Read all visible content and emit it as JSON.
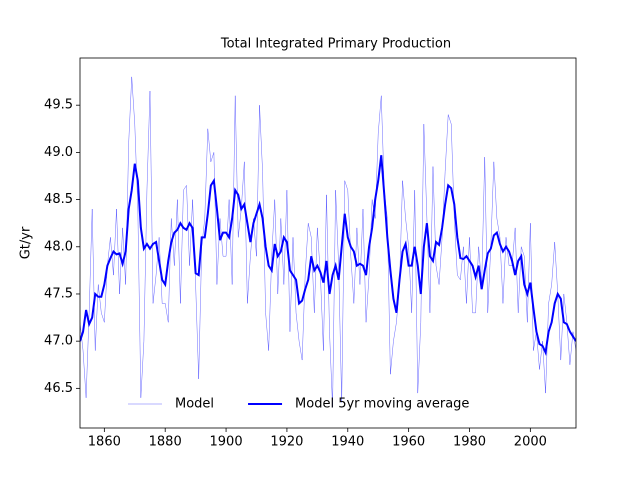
{
  "chart_data": {
    "type": "line",
    "title": "Total Integrated Primary Production",
    "y_label": "Gt/yr",
    "x": [
      1852,
      1853,
      1854,
      1855,
      1856,
      1857,
      1858,
      1859,
      1860,
      1861,
      1862,
      1863,
      1864,
      1865,
      1866,
      1867,
      1868,
      1869,
      1870,
      1871,
      1872,
      1873,
      1874,
      1875,
      1876,
      1877,
      1878,
      1879,
      1880,
      1881,
      1882,
      1883,
      1884,
      1885,
      1886,
      1887,
      1888,
      1889,
      1890,
      1891,
      1892,
      1893,
      1894,
      1895,
      1896,
      1897,
      1898,
      1899,
      1900,
      1901,
      1902,
      1903,
      1904,
      1905,
      1906,
      1907,
      1908,
      1909,
      1910,
      1911,
      1912,
      1913,
      1914,
      1915,
      1916,
      1917,
      1918,
      1919,
      1920,
      1921,
      1922,
      1923,
      1924,
      1925,
      1926,
      1927,
      1928,
      1929,
      1930,
      1931,
      1932,
      1933,
      1934,
      1935,
      1936,
      1937,
      1938,
      1939,
      1940,
      1941,
      1942,
      1943,
      1944,
      1945,
      1946,
      1947,
      1948,
      1949,
      1950,
      1951,
      1952,
      1953,
      1954,
      1955,
      1956,
      1957,
      1958,
      1959,
      1960,
      1961,
      1962,
      1963,
      1964,
      1965,
      1966,
      1967,
      1968,
      1969,
      1970,
      1971,
      1972,
      1973,
      1974,
      1975,
      1976,
      1977,
      1978,
      1979,
      1980,
      1981,
      1982,
      1983,
      1984,
      1985,
      1986,
      1987,
      1988,
      1989,
      1990,
      1991,
      1992,
      1993,
      1994,
      1995,
      1996,
      1997,
      1998,
      1999,
      2000,
      2001,
      2002,
      2003,
      2004,
      2005,
      2006,
      2007,
      2008,
      2009,
      2010,
      2011,
      2012,
      2013,
      2014,
      2015
    ],
    "series": [
      {
        "name": "Model",
        "color": "#0000ff",
        "line_width": 0.3,
        "values": [
          47.2,
          46.9,
          46.4,
          47.3,
          48.4,
          46.9,
          47.6,
          47.3,
          47.2,
          47.8,
          48.1,
          47.7,
          48.4,
          47.5,
          48.2,
          47.6,
          49.1,
          49.8,
          49.3,
          48.4,
          46.4,
          47.0,
          48.6,
          49.65,
          47.4,
          47.7,
          48.1,
          47.4,
          47.4,
          47.2,
          48.3,
          47.8,
          48.5,
          47.4,
          48.6,
          48.65,
          47.8,
          48.5,
          47.6,
          46.6,
          48.0,
          48.3,
          49.25,
          48.9,
          49.0,
          47.6,
          48.3,
          47.9,
          47.9,
          48.5,
          47.6,
          49.6,
          48.1,
          48.4,
          48.9,
          47.4,
          47.9,
          48.3,
          47.9,
          49.5,
          48.8,
          47.3,
          46.9,
          47.9,
          48.5,
          47.5,
          48.3,
          47.6,
          48.6,
          47.1,
          48.1,
          47.3,
          47.0,
          46.8,
          47.7,
          48.25,
          48.1,
          47.3,
          48.2,
          47.7,
          46.9,
          48.55,
          47.1,
          46.3,
          48.6,
          47.8,
          46.35,
          48.7,
          48.6,
          47.9,
          47.4,
          48.2,
          47.6,
          48.4,
          47.2,
          47.7,
          48.5,
          48.3,
          49.2,
          49.6,
          48.6,
          48.3,
          46.65,
          47.0,
          47.2,
          47.6,
          48.7,
          48.3,
          48.0,
          47.3,
          48.6,
          46.45,
          47.2,
          49.3,
          48.3,
          47.3,
          48.85,
          47.8,
          47.6,
          48.1,
          48.8,
          49.4,
          49.3,
          48.3,
          47.7,
          47.65,
          48.0,
          47.4,
          48.1,
          47.3,
          47.3,
          48.0,
          47.6,
          48.95,
          47.3,
          48.0,
          48.9,
          48.3,
          48.1,
          47.4,
          48.1,
          47.8,
          47.8,
          48.2,
          47.3,
          48.0,
          47.9,
          47.2,
          48.25,
          46.9,
          47.1,
          46.7,
          47.0,
          46.45,
          47.4,
          47.6,
          48.05,
          47.5,
          46.8,
          47.5,
          47.2,
          46.75,
          47.1,
          46.9
        ]
      },
      {
        "name": "Model 5yr moving average",
        "color": "#0000ff",
        "line_width": 2,
        "values": [
          47.0,
          47.1,
          47.33,
          47.18,
          47.25,
          47.5,
          47.47,
          47.47,
          47.6,
          47.8,
          47.88,
          47.95,
          47.92,
          47.93,
          47.82,
          47.95,
          48.4,
          48.6,
          48.88,
          48.7,
          48.2,
          47.98,
          48.03,
          47.98,
          48.03,
          48.05,
          47.85,
          47.65,
          47.6,
          47.85,
          48.05,
          48.15,
          48.18,
          48.25,
          48.2,
          48.18,
          48.25,
          48.2,
          47.72,
          47.7,
          48.1,
          48.1,
          48.35,
          48.65,
          48.7,
          48.4,
          48.07,
          48.15,
          48.15,
          48.1,
          48.3,
          48.6,
          48.55,
          48.4,
          48.45,
          48.25,
          48.05,
          48.25,
          48.35,
          48.45,
          48.3,
          48.0,
          47.8,
          47.75,
          48.03,
          47.9,
          47.95,
          48.1,
          48.05,
          47.75,
          47.7,
          47.65,
          47.4,
          47.43,
          47.55,
          47.65,
          47.9,
          47.75,
          47.8,
          47.73,
          47.62,
          47.85,
          47.5,
          47.7,
          47.8,
          47.65,
          48.0,
          48.35,
          48.1,
          48.0,
          47.95,
          47.8,
          47.82,
          47.8,
          47.7,
          48.0,
          48.2,
          48.5,
          48.7,
          48.97,
          48.55,
          48.1,
          47.75,
          47.45,
          47.3,
          47.65,
          47.95,
          48.03,
          47.8,
          47.8,
          48.0,
          47.8,
          47.5,
          48.0,
          48.25,
          47.9,
          47.85,
          48.05,
          48.02,
          48.2,
          48.45,
          48.65,
          48.62,
          48.45,
          48.1,
          47.88,
          47.87,
          47.9,
          47.85,
          47.8,
          47.68,
          47.8,
          47.55,
          47.75,
          47.93,
          47.98,
          48.12,
          48.15,
          48.03,
          47.95,
          48.0,
          47.95,
          47.85,
          47.7,
          47.85,
          47.9,
          47.6,
          47.5,
          47.62,
          47.35,
          47.1,
          46.97,
          46.95,
          46.88,
          47.1,
          47.2,
          47.4,
          47.5,
          47.45,
          47.2,
          47.18,
          47.1,
          47.05,
          47.0
        ]
      }
    ],
    "xlim": [
      1852,
      2015
    ],
    "ylim": [
      46.08,
      50.0
    ],
    "xticks": [
      1860,
      1880,
      1900,
      1920,
      1940,
      1960,
      1980,
      2000
    ],
    "yticks": [
      46.5,
      {
        "value": 47.0,
        "label": "47.0"
      },
      47.5,
      {
        "value": 48.0,
        "label": "48.0"
      },
      48.5,
      {
        "value": 49.0,
        "label": "49.0"
      },
      49.5
    ],
    "legend": "lower center"
  }
}
